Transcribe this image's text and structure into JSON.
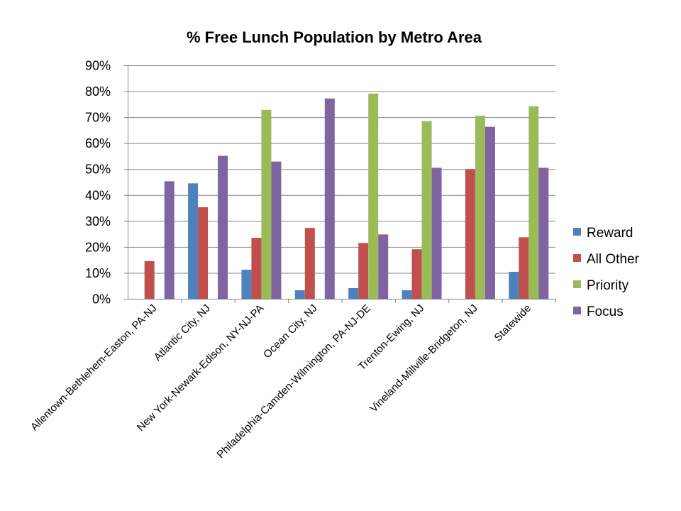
{
  "chart_data": {
    "type": "bar",
    "title": "% Free Lunch Population by Metro Area",
    "xlabel": "",
    "ylabel": "",
    "ylim": [
      0,
      90
    ],
    "yticks": [
      "0%",
      "10%",
      "20%",
      "30%",
      "40%",
      "50%",
      "60%",
      "70%",
      "80%",
      "90%"
    ],
    "grid": true,
    "legend_position": "right",
    "categories": [
      "Allentown-Bethlehem-Easton, PA-NJ",
      "Atlantic City, NJ",
      "New York-Newark-Edison, NY-NJ-PA",
      "Ocean City, NJ",
      "Philadelphia-Camden-Wilmington, PA-NJ-DE",
      "Trenton-Ewing, NJ",
      "Vineland-Millville-Bridgeton, NJ",
      "Statewide"
    ],
    "series": [
      {
        "name": "Reward",
        "color": "#4F81BD",
        "values": [
          0,
          44.5,
          11.2,
          3.3,
          4.1,
          3.3,
          0,
          10.4
        ]
      },
      {
        "name": "All Other",
        "color": "#C0504D",
        "values": [
          14.5,
          35.3,
          23.5,
          27.3,
          21.5,
          19.1,
          50.0,
          23.7
        ]
      },
      {
        "name": "Priority",
        "color": "#9BBB59",
        "values": [
          0,
          0,
          72.8,
          0,
          79.1,
          68.5,
          70.6,
          74.2
        ]
      },
      {
        "name": "Focus",
        "color": "#8064A2",
        "values": [
          45.3,
          55.1,
          52.9,
          77.2,
          24.8,
          50.5,
          66.3,
          50.5
        ]
      }
    ]
  }
}
